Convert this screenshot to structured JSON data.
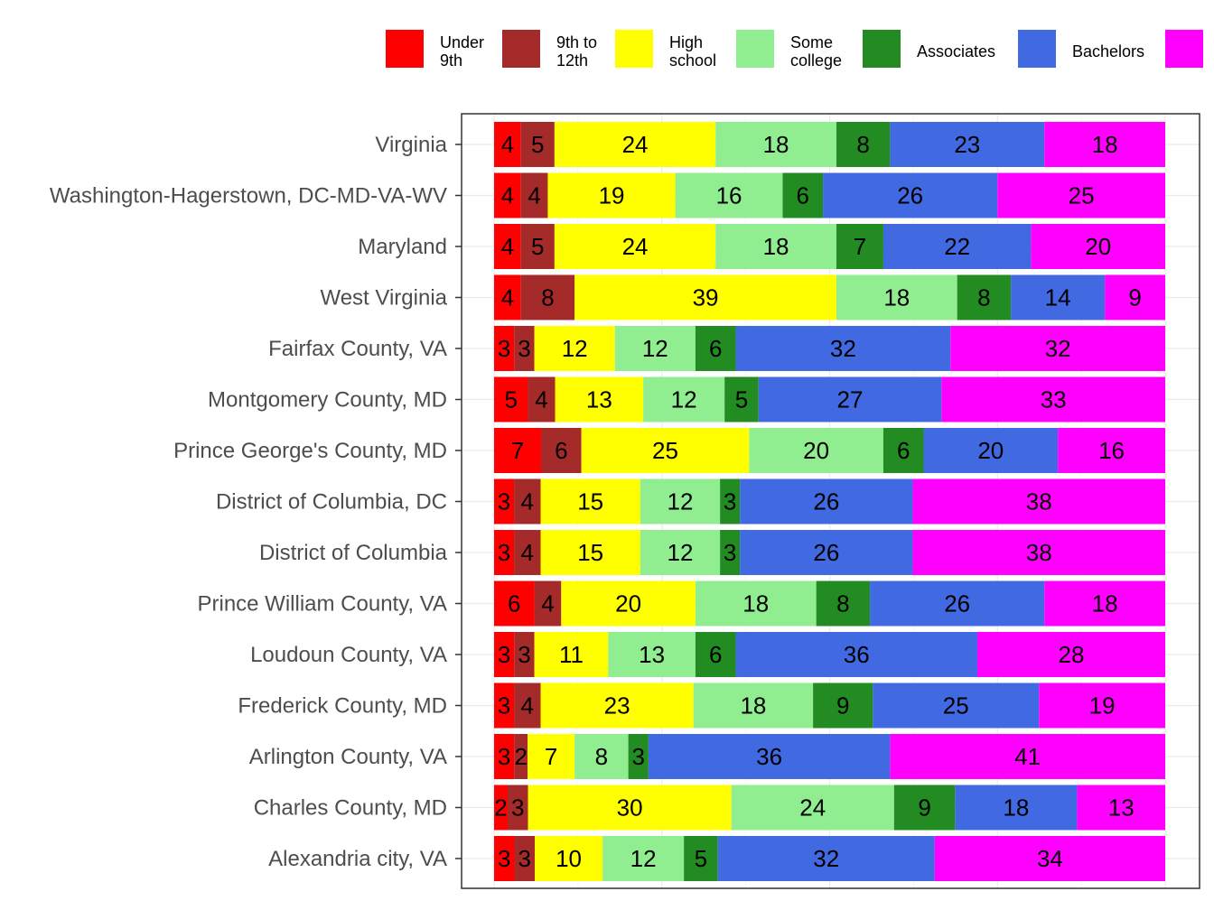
{
  "chart_data": {
    "type": "bar",
    "orientation": "horizontal",
    "stacked": true,
    "title": "",
    "xlabel": "",
    "ylabel": "",
    "xlim": [
      0,
      100
    ],
    "grid": true,
    "legend_position": "top",
    "categories": [
      "Virginia",
      "Washington-Hagerstown, DC-MD-VA-WV",
      "Maryland",
      "West Virginia",
      "Fairfax County, VA",
      "Montgomery County, MD",
      "Prince George's County, MD",
      "District of Columbia, DC",
      "District of Columbia",
      "Prince William County, VA",
      "Loudoun County, VA",
      "Frederick County, MD",
      "Arlington County, VA",
      "Charles County, MD",
      "Alexandria city, VA"
    ],
    "series": [
      {
        "name": "Under 9th",
        "legend_lines": [
          "Under",
          "9th"
        ],
        "color": "#ff0000",
        "values": [
          4,
          4,
          4,
          4,
          3,
          5,
          7,
          3,
          3,
          6,
          3,
          3,
          3,
          2,
          3
        ]
      },
      {
        "name": "9th to 12th",
        "legend_lines": [
          "9th to",
          "12th"
        ],
        "color": "#a52a2a",
        "values": [
          5,
          4,
          5,
          8,
          3,
          4,
          6,
          4,
          4,
          4,
          3,
          4,
          2,
          3,
          3
        ]
      },
      {
        "name": "High school",
        "legend_lines": [
          "High",
          "school"
        ],
        "color": "#ffff00",
        "values": [
          24,
          19,
          24,
          39,
          12,
          13,
          25,
          15,
          15,
          20,
          11,
          23,
          7,
          30,
          10
        ]
      },
      {
        "name": "Some college",
        "legend_lines": [
          "Some",
          "college"
        ],
        "color": "#90ee90",
        "values": [
          18,
          16,
          18,
          18,
          12,
          12,
          20,
          12,
          12,
          18,
          13,
          18,
          8,
          24,
          12
        ]
      },
      {
        "name": "Associates",
        "legend_lines": [
          "Associates"
        ],
        "color": "#228b22",
        "values": [
          8,
          6,
          7,
          8,
          6,
          5,
          6,
          3,
          3,
          8,
          6,
          9,
          3,
          9,
          5
        ]
      },
      {
        "name": "Bachelors",
        "legend_lines": [
          "Bachelors"
        ],
        "color": "#4169e1",
        "values": [
          23,
          26,
          22,
          14,
          32,
          27,
          20,
          26,
          26,
          26,
          36,
          25,
          36,
          18,
          32
        ]
      },
      {
        "name": "",
        "legend_lines": [],
        "color": "#ff00ff",
        "values": [
          18,
          25,
          20,
          9,
          32,
          33,
          16,
          38,
          38,
          18,
          28,
          19,
          41,
          13,
          34
        ]
      }
    ]
  }
}
